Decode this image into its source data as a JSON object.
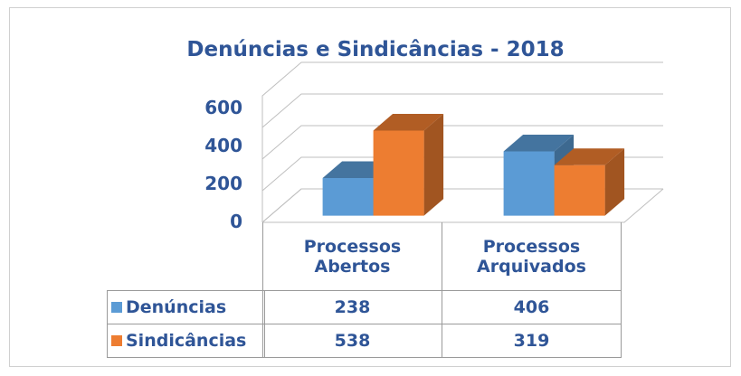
{
  "chart_data": {
    "type": "bar3d",
    "title": "Denúncias e Sindicâncias - 2018",
    "categories": [
      "Processos Abertos",
      "Processos Arquivados"
    ],
    "series": [
      {
        "name": "Denúncias",
        "color": "#5b9bd5",
        "values": [
          238,
          406
        ]
      },
      {
        "name": "Sindicâncias",
        "color": "#ed7d31",
        "values": [
          538,
          319
        ]
      }
    ],
    "ylim": [
      0,
      800
    ],
    "yticks": [
      0,
      200,
      400,
      600
    ],
    "grid": true,
    "data_table": true
  }
}
